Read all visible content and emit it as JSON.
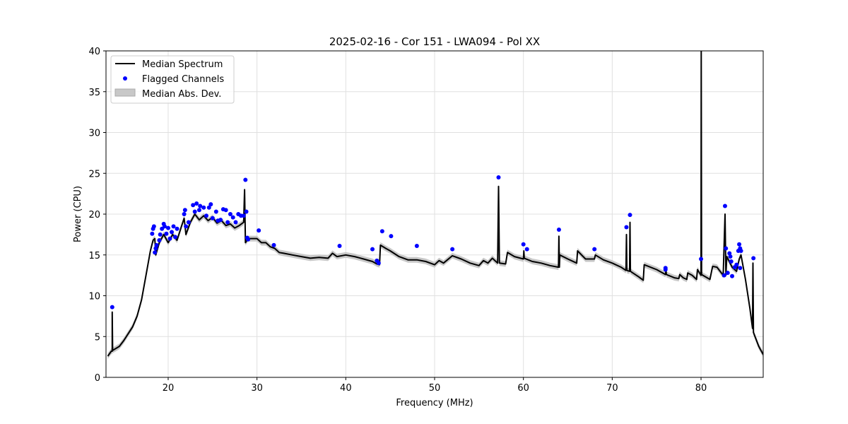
{
  "chart_data": {
    "type": "line",
    "title": "2025-02-16 - Cor 151 - LWA094 - Pol XX",
    "xlabel": "Frequency (MHz)",
    "ylabel": "Power (CPU)",
    "xlim": [
      13,
      87
    ],
    "ylim": [
      0,
      40
    ],
    "xticks": [
      20,
      30,
      40,
      50,
      60,
      70,
      80
    ],
    "yticks": [
      0,
      5,
      10,
      15,
      20,
      25,
      30,
      35,
      40
    ],
    "grid": true,
    "legend_position": "top-left",
    "legend": [
      "Median Spectrum",
      "Flagged Channels",
      "Median Abs. Dev."
    ],
    "colors": {
      "median": "#000000",
      "flagged": "#0000ff",
      "mad": "#c8c8c8"
    },
    "mad_halfwidth": 0.35,
    "median_spectrum": [
      [
        13.2,
        2.6
      ],
      [
        13.6,
        3.2
      ],
      [
        13.7,
        3.2
      ],
      [
        13.7,
        8.0
      ],
      [
        13.75,
        3.3
      ],
      [
        14.5,
        3.8
      ],
      [
        15,
        4.5
      ],
      [
        16,
        6.2
      ],
      [
        16.5,
        7.5
      ],
      [
        17,
        9.5
      ],
      [
        17.5,
        12.5
      ],
      [
        18,
        15.5
      ],
      [
        18.3,
        16.8
      ],
      [
        18.5,
        17.0
      ],
      [
        18.6,
        15.0
      ],
      [
        19,
        16.5
      ],
      [
        19.5,
        17.5
      ],
      [
        20,
        16.5
      ],
      [
        20.5,
        17.5
      ],
      [
        21,
        16.8
      ],
      [
        21.5,
        18.5
      ],
      [
        21.8,
        19.5
      ],
      [
        22,
        17.5
      ],
      [
        22.5,
        19
      ],
      [
        23,
        20
      ],
      [
        23.5,
        19.3
      ],
      [
        24,
        19.8
      ],
      [
        24.5,
        19.2
      ],
      [
        25,
        19.6
      ],
      [
        25.5,
        18.9
      ],
      [
        26,
        19.2
      ],
      [
        26.5,
        18.6
      ],
      [
        27,
        18.8
      ],
      [
        27.5,
        18.3
      ],
      [
        28,
        18.6
      ],
      [
        28.5,
        19.0
      ],
      [
        28.6,
        23.0
      ],
      [
        28.7,
        16.5
      ],
      [
        29,
        17.0
      ],
      [
        30,
        17.0
      ],
      [
        30.5,
        16.5
      ],
      [
        31,
        16.5
      ],
      [
        31.5,
        16.0
      ],
      [
        32,
        15.8
      ],
      [
        32.5,
        15.3
      ],
      [
        33,
        15.2
      ],
      [
        34,
        15.0
      ],
      [
        35,
        14.8
      ],
      [
        36,
        14.6
      ],
      [
        37,
        14.7
      ],
      [
        38,
        14.6
      ],
      [
        38.5,
        15.2
      ],
      [
        39,
        14.8
      ],
      [
        40,
        15.0
      ],
      [
        41,
        14.8
      ],
      [
        42,
        14.5
      ],
      [
        43,
        14.2
      ],
      [
        43.5,
        13.9
      ],
      [
        43.8,
        13.8
      ],
      [
        43.9,
        16.2
      ],
      [
        44.5,
        15.8
      ],
      [
        45,
        15.5
      ],
      [
        46,
        14.8
      ],
      [
        47,
        14.4
      ],
      [
        48,
        14.4
      ],
      [
        49,
        14.2
      ],
      [
        50,
        13.8
      ],
      [
        50.5,
        14.3
      ],
      [
        51,
        14.0
      ],
      [
        52,
        14.9
      ],
      [
        53,
        14.5
      ],
      [
        54,
        14.0
      ],
      [
        55,
        13.7
      ],
      [
        55.5,
        14.3
      ],
      [
        56,
        14.0
      ],
      [
        56.5,
        14.6
      ],
      [
        57.1,
        14.0
      ],
      [
        57.2,
        23.4
      ],
      [
        57.3,
        14.0
      ],
      [
        58,
        13.9
      ],
      [
        58.2,
        15.3
      ],
      [
        59,
        14.8
      ],
      [
        60,
        14.5
      ],
      [
        60.05,
        15.5
      ],
      [
        60.1,
        14.6
      ],
      [
        61,
        14.2
      ],
      [
        62,
        14.0
      ],
      [
        63,
        13.7
      ],
      [
        63.95,
        13.5
      ],
      [
        64,
        17.3
      ],
      [
        64.05,
        13.5
      ],
      [
        64.1,
        15.0
      ],
      [
        65,
        14.5
      ],
      [
        66,
        14.0
      ],
      [
        66.1,
        15.5
      ],
      [
        67,
        14.5
      ],
      [
        68,
        14.5
      ],
      [
        68.1,
        15.0
      ],
      [
        69,
        14.4
      ],
      [
        70,
        14.0
      ],
      [
        71,
        13.5
      ],
      [
        71.55,
        13.1
      ],
      [
        71.6,
        17.5
      ],
      [
        71.65,
        13.1
      ],
      [
        71.95,
        13.0
      ],
      [
        72,
        19.0
      ],
      [
        72.05,
        13.0
      ],
      [
        73,
        12.3
      ],
      [
        73.5,
        11.9
      ],
      [
        73.6,
        13.8
      ],
      [
        75,
        13.2
      ],
      [
        76,
        12.6
      ],
      [
        76.05,
        13.2
      ],
      [
        76.1,
        12.6
      ],
      [
        77,
        12.2
      ],
      [
        77.5,
        12.1
      ],
      [
        77.6,
        12.6
      ],
      [
        78,
        12.2
      ],
      [
        78.4,
        12.0
      ],
      [
        78.5,
        12.8
      ],
      [
        79,
        12.5
      ],
      [
        79.5,
        12.0
      ],
      [
        79.6,
        13.2
      ],
      [
        80,
        12.5
      ],
      [
        80.02,
        40
      ],
      [
        80.06,
        12.6
      ],
      [
        81,
        12.0
      ],
      [
        81.3,
        13.6
      ],
      [
        81.8,
        13.5
      ],
      [
        82.5,
        12.5
      ],
      [
        82.7,
        20.0
      ],
      [
        82.8,
        12.5
      ],
      [
        82.9,
        14.8
      ],
      [
        83.5,
        13.5
      ],
      [
        84,
        13.0
      ],
      [
        84.3,
        14.5
      ],
      [
        84.5,
        15.0
      ],
      [
        85,
        12.0
      ],
      [
        85.5,
        8.5
      ],
      [
        85.8,
        6.0
      ],
      [
        85.85,
        14.0
      ],
      [
        85.9,
        5.5
      ],
      [
        86.5,
        3.8
      ],
      [
        87,
        2.8
      ]
    ],
    "flagged_channels": [
      [
        13.7,
        8.6
      ],
      [
        18.2,
        17.6
      ],
      [
        18.3,
        18.2
      ],
      [
        18.4,
        18.5
      ],
      [
        18.5,
        15.3
      ],
      [
        18.6,
        15.8
      ],
      [
        18.7,
        16.2
      ],
      [
        19,
        16.8
      ],
      [
        19.1,
        17.5
      ],
      [
        19.3,
        18.2
      ],
      [
        19.5,
        18.8
      ],
      [
        19.6,
        18.5
      ],
      [
        19.8,
        17.6
      ],
      [
        20,
        18.3
      ],
      [
        20.2,
        17.0
      ],
      [
        20.4,
        17.8
      ],
      [
        20.6,
        18.5
      ],
      [
        20.8,
        17.2
      ],
      [
        21,
        18.2
      ],
      [
        21.8,
        20.0
      ],
      [
        21.9,
        20.5
      ],
      [
        22,
        18.5
      ],
      [
        22.3,
        19.0
      ],
      [
        22.8,
        21.1
      ],
      [
        23,
        20.3
      ],
      [
        23.2,
        21.3
      ],
      [
        23.5,
        20.5
      ],
      [
        23.6,
        21.0
      ],
      [
        24,
        20.8
      ],
      [
        24.3,
        19.8
      ],
      [
        24.6,
        20.8
      ],
      [
        24.8,
        21.2
      ],
      [
        25,
        19.5
      ],
      [
        25.4,
        20.3
      ],
      [
        25.6,
        19.2
      ],
      [
        25.9,
        19.3
      ],
      [
        26.2,
        20.6
      ],
      [
        26.5,
        20.5
      ],
      [
        26.7,
        19.0
      ],
      [
        27,
        20.0
      ],
      [
        27.3,
        19.6
      ],
      [
        27.6,
        19.0
      ],
      [
        27.9,
        20.0
      ],
      [
        28.2,
        19.8
      ],
      [
        28.5,
        19.8
      ],
      [
        28.7,
        24.2
      ],
      [
        28.8,
        20.3
      ],
      [
        28.9,
        17.1
      ],
      [
        29,
        16.9
      ],
      [
        30.2,
        18.0
      ],
      [
        31.9,
        16.2
      ],
      [
        39.3,
        16.1
      ],
      [
        43,
        15.7
      ],
      [
        43.5,
        14.3
      ],
      [
        43.7,
        14.0
      ],
      [
        44.1,
        17.9
      ],
      [
        45.1,
        17.3
      ],
      [
        48,
        16.1
      ],
      [
        52,
        15.7
      ],
      [
        57.2,
        24.5
      ],
      [
        60,
        16.3
      ],
      [
        60.4,
        15.7
      ],
      [
        64,
        18.1
      ],
      [
        68,
        15.7
      ],
      [
        71.6,
        18.4
      ],
      [
        72,
        19.9
      ],
      [
        76,
        13.4
      ],
      [
        76,
        13.2
      ],
      [
        80,
        14.5
      ],
      [
        82.7,
        21.0
      ],
      [
        82.8,
        15.8
      ],
      [
        82.6,
        12.5
      ],
      [
        83,
        12.8
      ],
      [
        83.2,
        15.2
      ],
      [
        83.3,
        14.8
      ],
      [
        83.4,
        14.2
      ],
      [
        83.5,
        12.4
      ],
      [
        83.8,
        13.5
      ],
      [
        84,
        13.8
      ],
      [
        84.2,
        15.5
      ],
      [
        84.3,
        16.3
      ],
      [
        84.4,
        15.8
      ],
      [
        84.5,
        15.5
      ],
      [
        84.4,
        13.4
      ],
      [
        85.9,
        14.6
      ]
    ]
  }
}
